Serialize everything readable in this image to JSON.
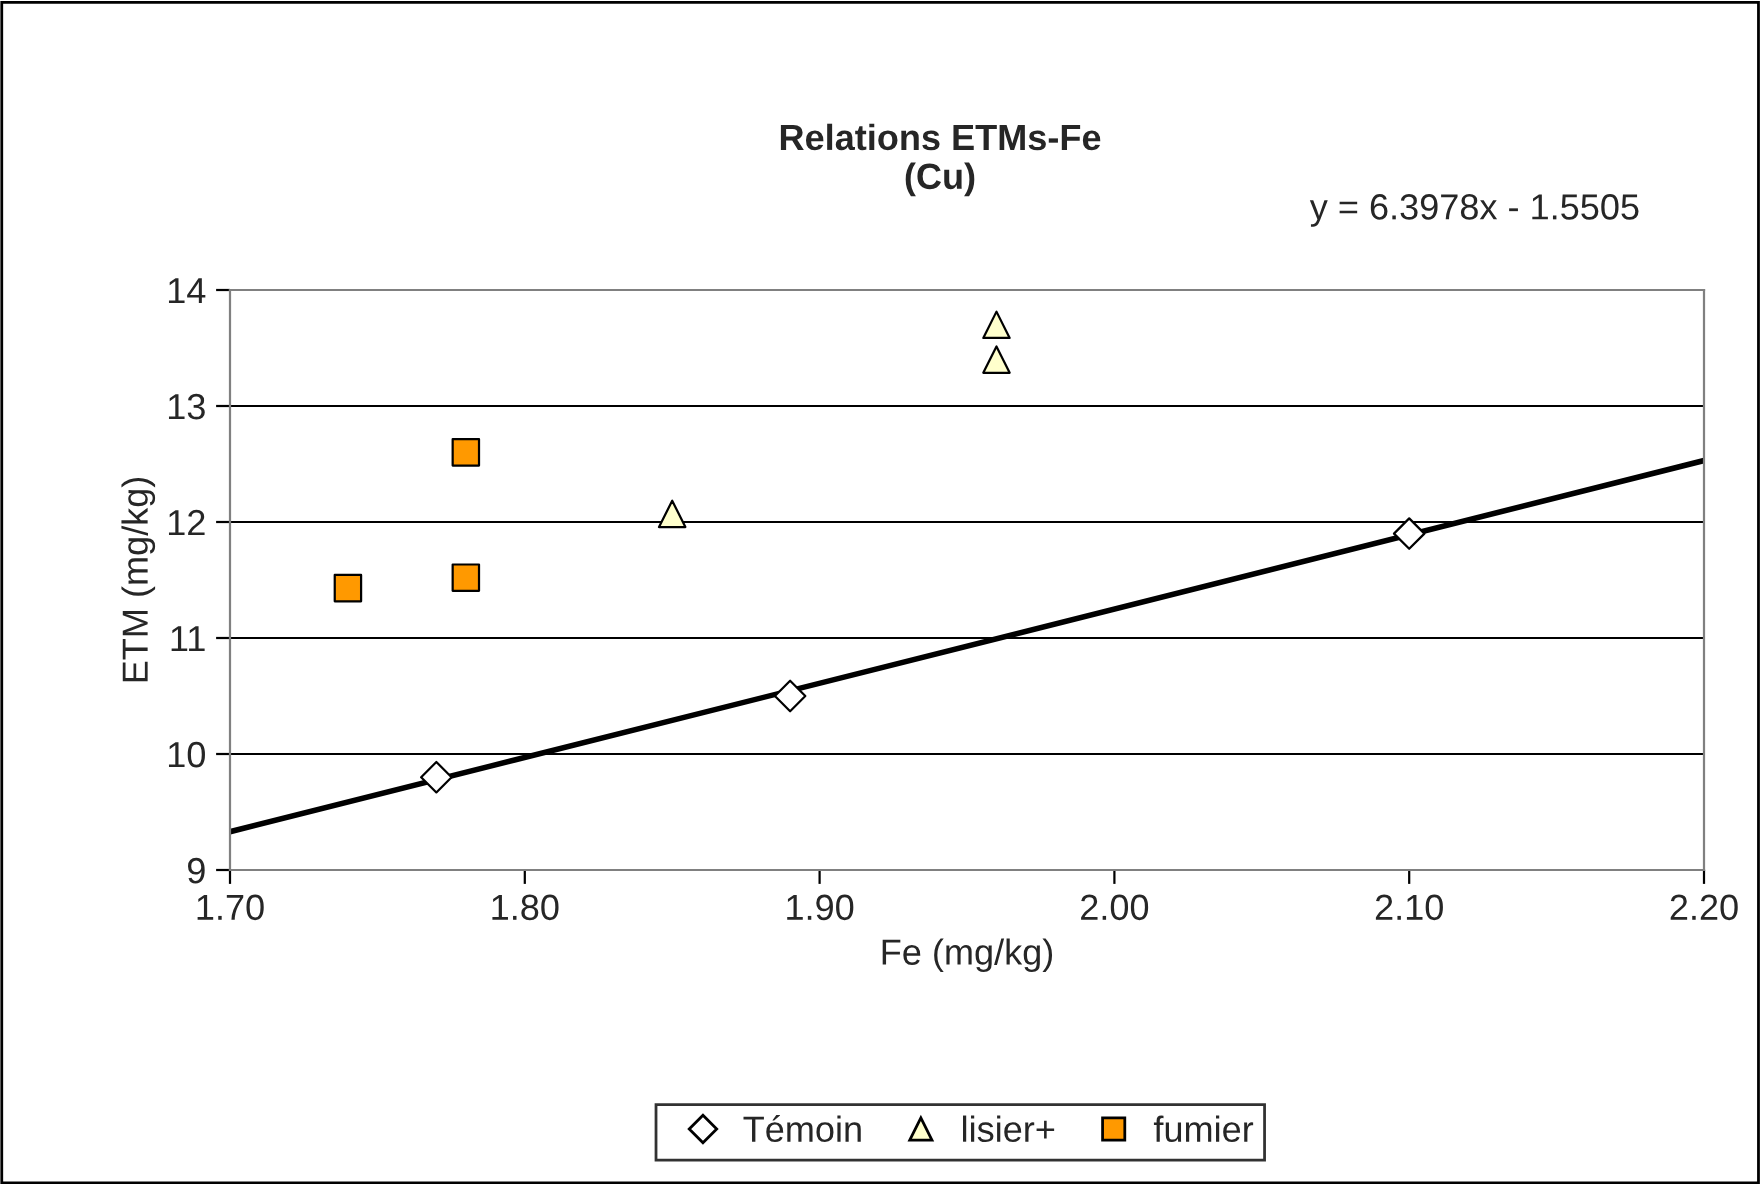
{
  "chart_data": {
    "type": "scatter",
    "title": "Relations ETMs-Fe\n(Cu)",
    "xlabel": "Fe (mg/kg)",
    "ylabel": "ETM (mg/kg)",
    "annotations": [
      "y = 6.3978x - 1.5505"
    ],
    "series": [
      {
        "name": "Témoin",
        "color": "#ffffff",
        "marker": "diamond",
        "x": [
          1.77,
          1.89,
          2.1
        ],
        "values": [
          9.8,
          10.5,
          11.9
        ]
      },
      {
        "name": "lisier+",
        "color": "#ffffcc",
        "marker": "triangle",
        "x": [
          1.85,
          1.96,
          1.96
        ],
        "values": [
          12.07,
          13.7,
          13.4
        ]
      },
      {
        "name": "fumier",
        "color": "#ff9900",
        "marker": "square",
        "x": [
          1.74,
          1.78,
          1.78
        ],
        "values": [
          11.43,
          12.6,
          11.52
        ]
      },
      {
        "type": "line",
        "color": "#000000",
        "marker": "none",
        "x": [
          1.7,
          2.2
        ],
        "values": [
          9.33,
          12.53
        ]
      }
    ],
    "xlim": [
      1.7,
      2.2
    ],
    "xticks": [
      {
        "value": 1.7,
        "label": "1.70"
      },
      {
        "value": 1.8,
        "label": "1.80"
      },
      {
        "value": 1.9,
        "label": "1.90"
      },
      {
        "value": 2.0,
        "label": "2.00"
      },
      {
        "value": 2.1,
        "label": "2.10"
      },
      {
        "value": 2.2,
        "label": "2.20"
      }
    ],
    "ylim": [
      9,
      14
    ],
    "yticks": [
      9,
      10,
      11,
      12,
      13,
      14
    ],
    "grid": "y",
    "legend": "bottom"
  }
}
